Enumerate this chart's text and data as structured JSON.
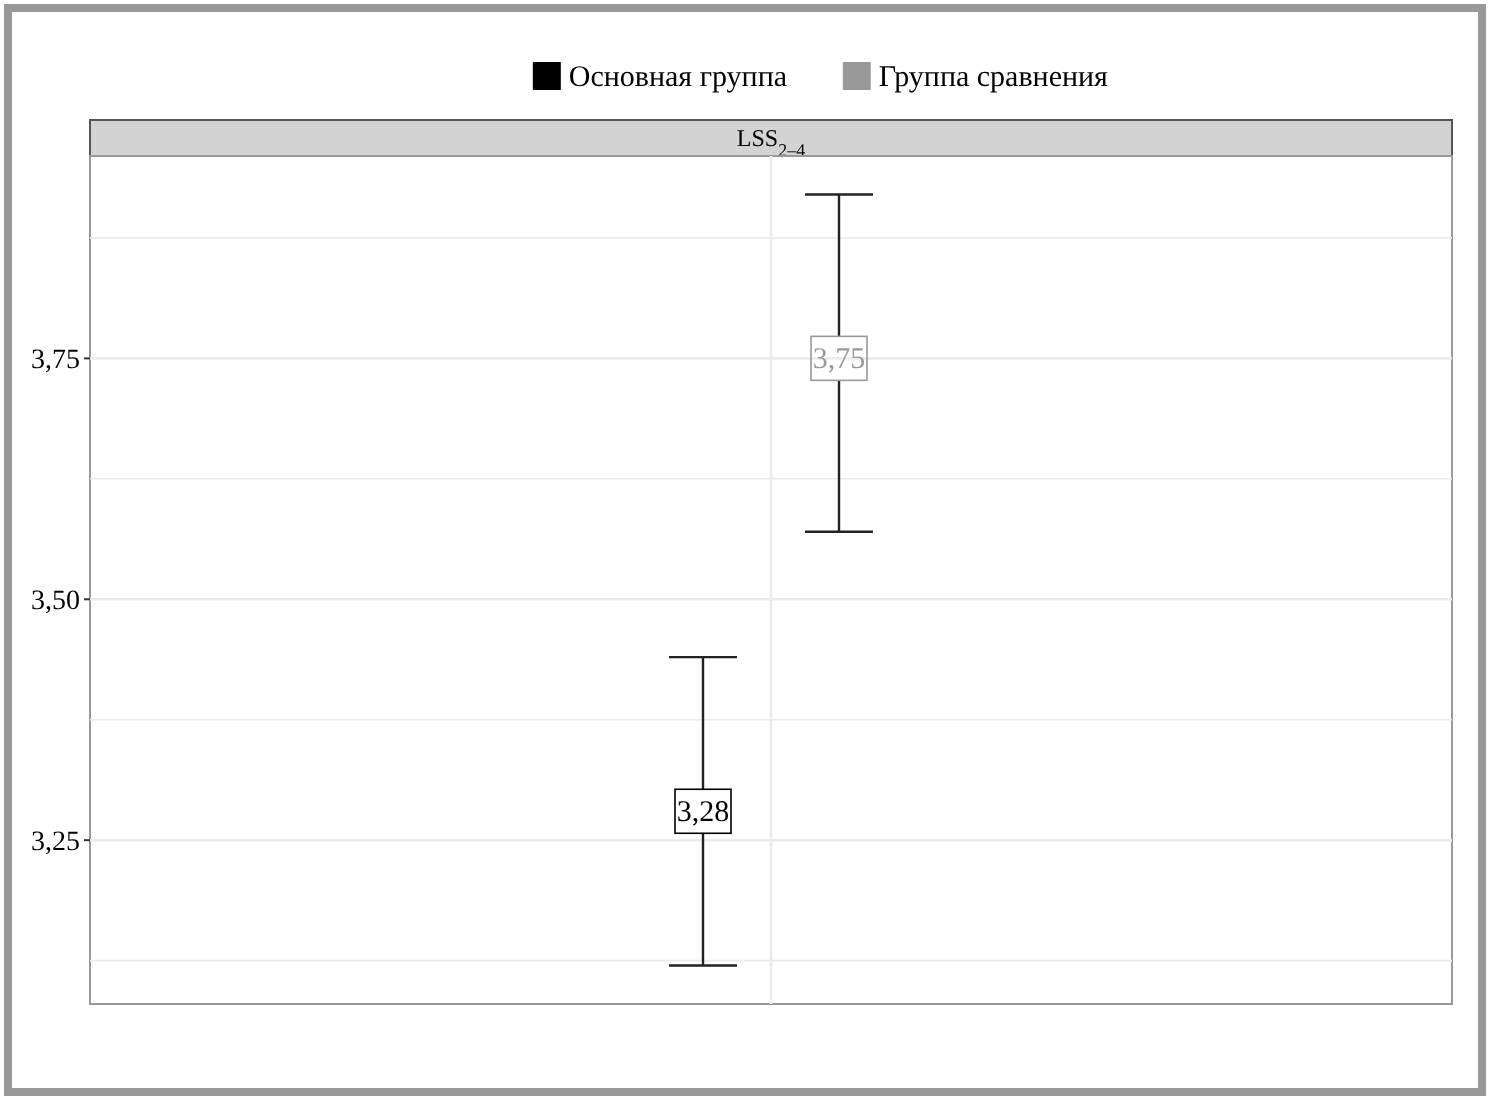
{
  "chart_data": {
    "type": "scatter",
    "title": "LSS$_{2–4}$",
    "categories": [
      null
    ],
    "series": [
      {
        "name": "Основная группа",
        "color": "#000000",
        "values": [
          3.28
        ],
        "errors": [
          [
            3.12,
            3.44
          ]
        ],
        "value_labels": [
          "3,28"
        ]
      },
      {
        "name": "Группа сравнения",
        "color": "#999999",
        "values": [
          3.75
        ],
        "errors": [
          [
            3.57,
            3.92
          ]
        ],
        "value_labels": [
          "3,75"
        ]
      }
    ],
    "ylim": [
      3.08,
      3.96
    ],
    "yticks": [
      {
        "value": 3.125,
        "label": null
      },
      {
        "value": 3.25,
        "label": "3,25"
      },
      {
        "value": 3.375,
        "label": null
      },
      {
        "value": 3.5,
        "label": "3,50"
      },
      {
        "value": 3.625,
        "label": null
      },
      {
        "value": 3.75,
        "label": "3,75"
      },
      {
        "value": 3.875,
        "label": null
      }
    ],
    "grid": true,
    "legend": "top",
    "marker": "square"
  }
}
